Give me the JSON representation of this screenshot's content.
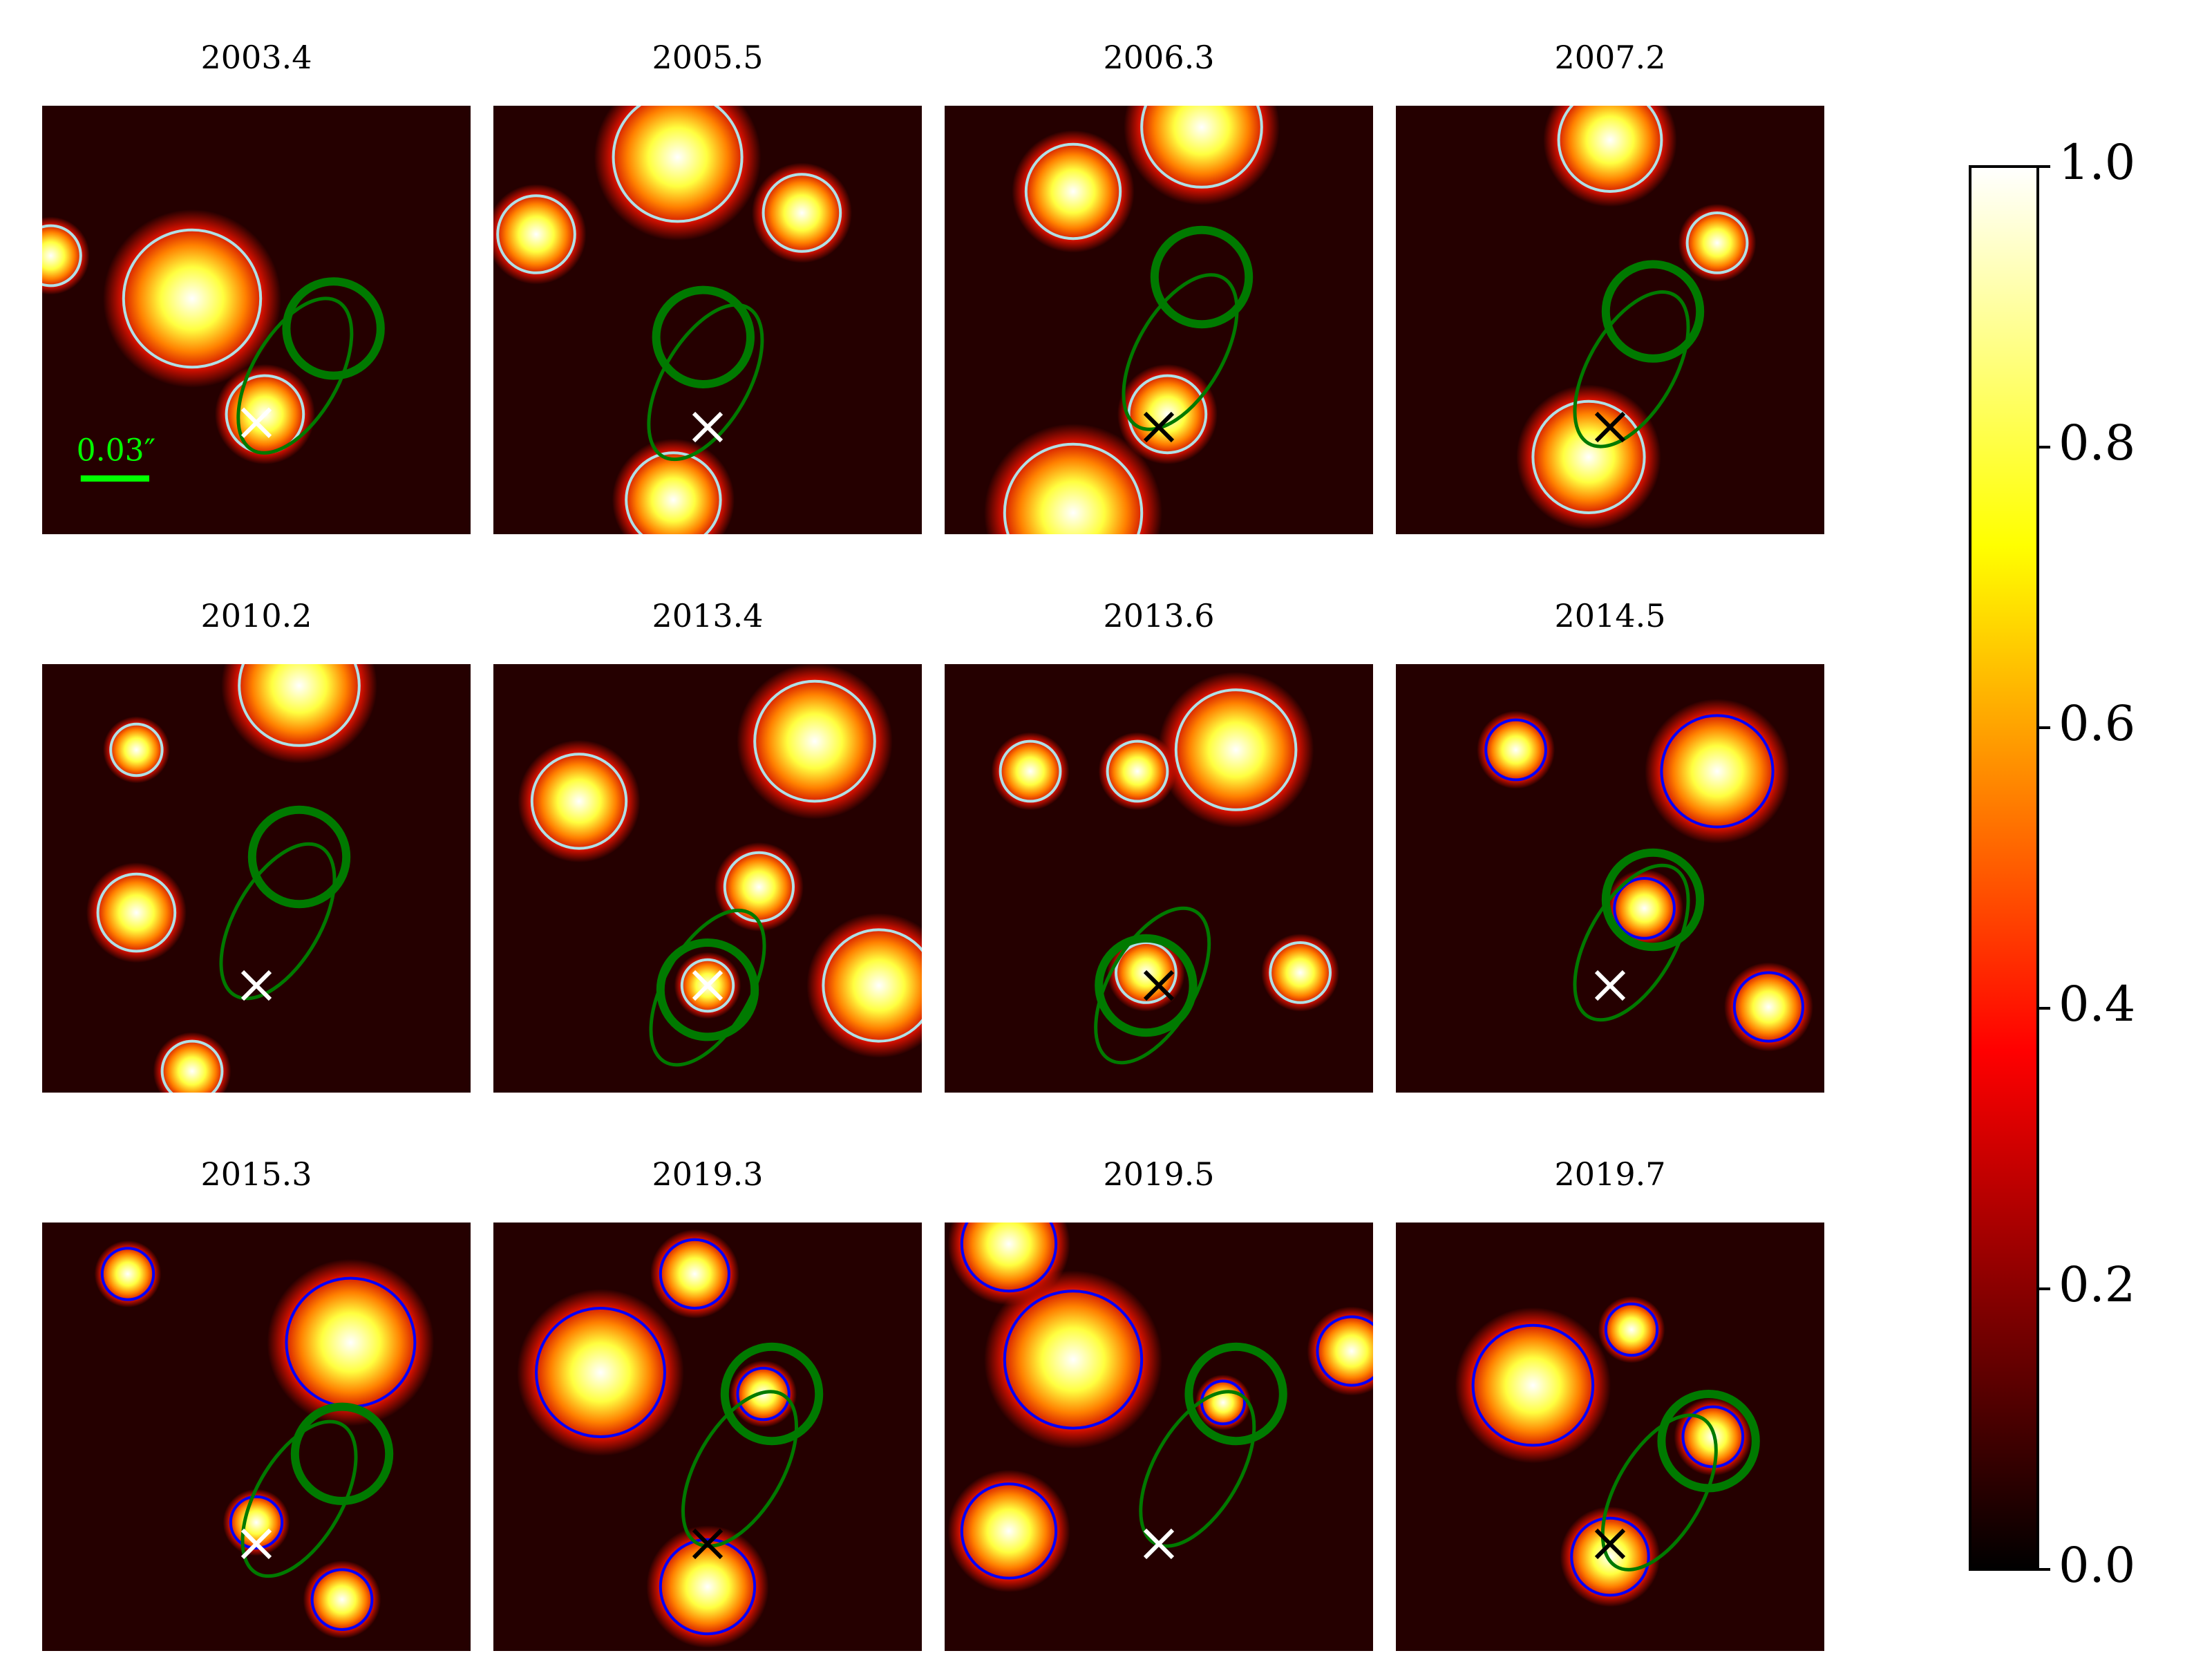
{
  "chart_data": {
    "type": "image_grid",
    "panels": [
      {
        "title": "2003.4"
      },
      {
        "title": "2005.5"
      },
      {
        "title": "2006.3"
      },
      {
        "title": "2007.2"
      },
      {
        "title": "2010.2"
      },
      {
        "title": "2013.4"
      },
      {
        "title": "2013.6"
      },
      {
        "title": "2014.5"
      },
      {
        "title": "2015.3"
      },
      {
        "title": "2019.3"
      },
      {
        "title": "2019.5"
      },
      {
        "title": "2019.7"
      }
    ],
    "scale_bar_label": "0.03″",
    "colorbar": {
      "lim": [
        0,
        1
      ],
      "ticks": [
        {
          "value": 0,
          "label": "0.0"
        },
        0.2,
        0.4,
        0.6,
        0.8,
        {
          "value": 1,
          "label": "1.0"
        }
      ]
    }
  }
}
